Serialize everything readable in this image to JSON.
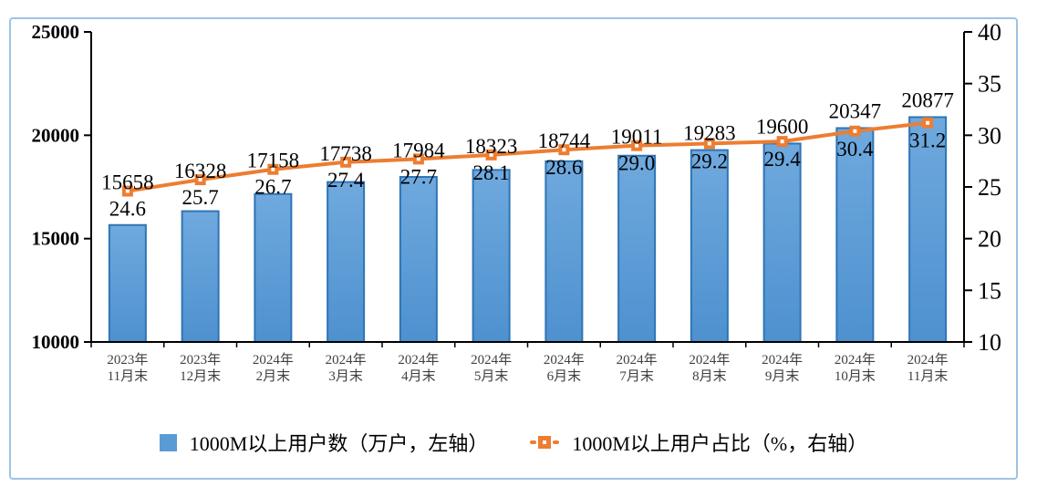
{
  "chart_data": {
    "type": "bar",
    "combo_with_line": true,
    "title": "",
    "categories": [
      [
        "2023年",
        "11月末"
      ],
      [
        "2023年",
        "12月末"
      ],
      [
        "2024年",
        "2月末"
      ],
      [
        "2024年",
        "3月末"
      ],
      [
        "2024年",
        "4月末"
      ],
      [
        "2024年",
        "5月末"
      ],
      [
        "2024年",
        "6月末"
      ],
      [
        "2024年",
        "7月末"
      ],
      [
        "2024年",
        "8月末"
      ],
      [
        "2024年",
        "9月末"
      ],
      [
        "2024年",
        "10月末"
      ],
      [
        "2024年",
        "11月末"
      ]
    ],
    "series": [
      {
        "name": "1000M以上用户数（万户，左轴）",
        "type": "bar",
        "axis": "left",
        "color": "#5B9BD5",
        "color_top": "#6FA9DE",
        "color_bottom": "#4E91CF",
        "border_color": "#2E75B6",
        "values": [
          15658,
          16328,
          17158,
          17738,
          17984,
          18323,
          18744,
          19011,
          19283,
          19600,
          20347,
          20877
        ]
      },
      {
        "name": "1000M以上用户占比（%，右轴）",
        "type": "line",
        "axis": "right",
        "color": "#ED7D31",
        "marker": "square-with-white-center",
        "label_decimals": 1,
        "values": [
          24.6,
          25.7,
          26.7,
          27.4,
          27.7,
          28.1,
          28.6,
          29.0,
          29.2,
          29.4,
          30.4,
          31.2
        ]
      }
    ],
    "left_axis": {
      "min": 10000,
      "max": 25000,
      "ticks": [
        10000,
        15000,
        20000,
        25000
      ]
    },
    "right_axis": {
      "min": 10,
      "max": 40,
      "ticks": [
        10,
        15,
        20,
        25,
        30,
        35,
        40
      ]
    },
    "legend": {
      "position": "bottom"
    },
    "grid": false,
    "frame_border_color": "#9DC3E6",
    "axis_color": "#000000",
    "category_label_color": "#404040"
  }
}
